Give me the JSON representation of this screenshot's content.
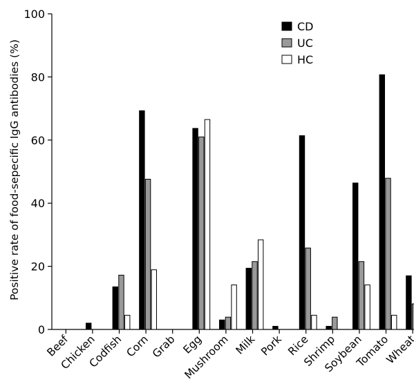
{
  "chart_data": {
    "type": "bar",
    "title": "",
    "xlabel": "",
    "ylabel": "Positive rate of food-sepecific  IgG antibodies (%)",
    "ylim": [
      0,
      100
    ],
    "yticks": [
      0,
      20,
      40,
      60,
      80,
      100
    ],
    "grid": false,
    "legend_position": "top-right",
    "categories": [
      "Beef",
      "Chicken",
      "Codfish",
      "Corn",
      "Grab",
      "Egg",
      "Mushroom",
      "Milk",
      "Pork",
      "Rice",
      "Shrimp",
      "Soybean",
      "Tomato",
      "Wheat"
    ],
    "series": [
      {
        "name": "CD",
        "color": "#000000",
        "values": [
          0,
          2,
          13.5,
          69.3,
          0,
          63.7,
          3,
          19.4,
          1,
          61.4,
          1,
          46.4,
          80.7,
          17
        ]
      },
      {
        "name": "UC",
        "color": "#999999",
        "values": [
          0,
          0,
          17.2,
          47.6,
          0,
          61.0,
          3.9,
          21.5,
          0,
          25.8,
          3.9,
          21.5,
          47.9,
          8.1
        ]
      },
      {
        "name": "HC",
        "color": "#ffffff",
        "values": [
          0,
          0,
          4.5,
          18.9,
          0,
          66.5,
          14.1,
          28.4,
          0,
          4.5,
          0,
          14.1,
          4.5,
          0
        ]
      }
    ]
  }
}
